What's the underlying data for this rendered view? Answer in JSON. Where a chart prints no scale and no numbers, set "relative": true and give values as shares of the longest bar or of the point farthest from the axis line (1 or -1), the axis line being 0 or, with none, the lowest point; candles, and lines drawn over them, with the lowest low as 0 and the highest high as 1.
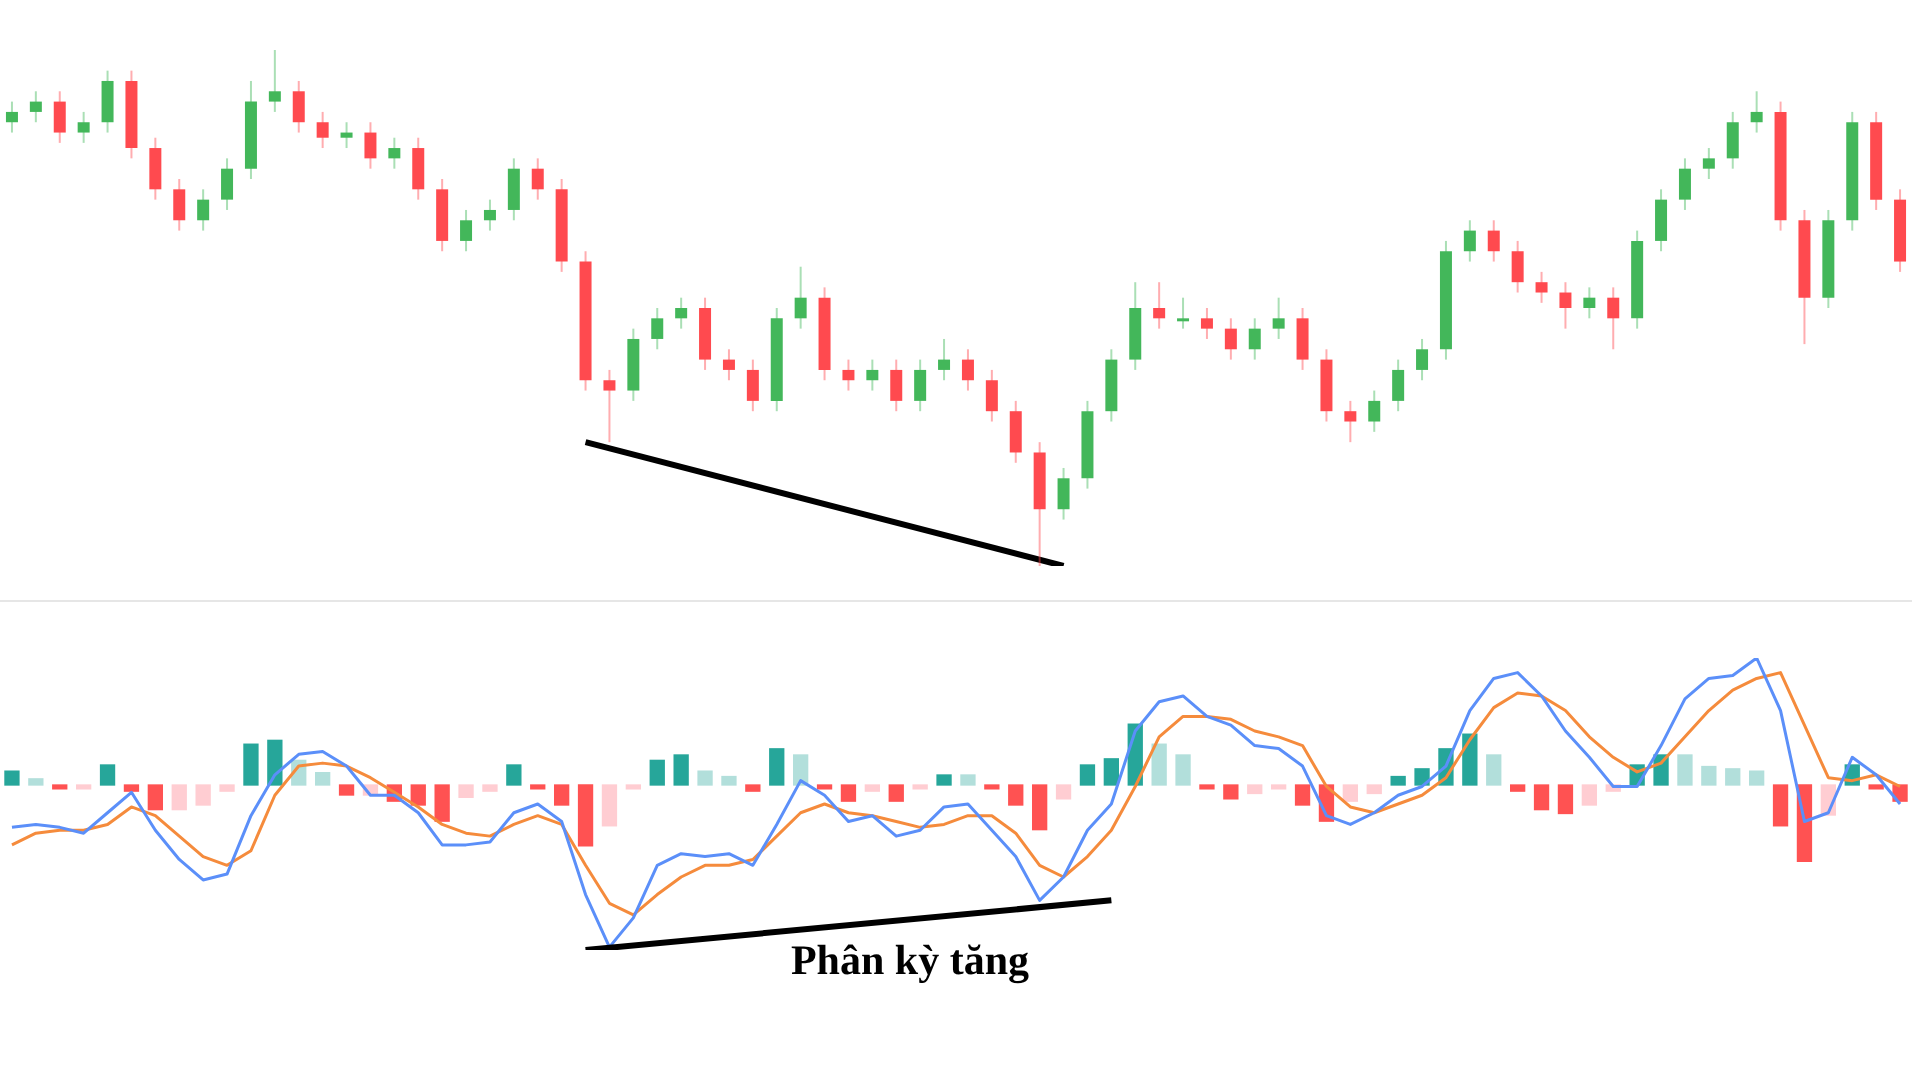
{
  "chart_data": [
    {
      "type": "candlestick",
      "relative": true,
      "tick_labels": false,
      "categories": [
        null,
        null,
        null,
        null,
        null,
        null,
        null,
        null,
        null,
        null,
        null,
        null,
        null,
        null,
        null,
        null,
        null,
        null,
        null,
        null,
        null,
        null,
        null,
        null,
        null,
        null,
        null,
        null,
        null,
        null,
        null,
        null,
        null,
        null,
        null,
        null,
        null,
        null,
        null,
        null,
        null,
        null,
        null,
        null,
        null,
        null,
        null,
        null,
        null,
        null,
        null,
        null,
        null,
        null,
        null,
        null,
        null,
        null,
        null,
        null,
        null,
        null,
        null,
        null,
        null,
        null,
        null,
        null,
        null,
        null,
        null,
        null,
        null,
        null,
        null,
        null,
        null,
        null,
        null,
        null
      ],
      "ohlc": [
        [
          0.86,
          0.9,
          0.84,
          0.88
        ],
        [
          0.88,
          0.92,
          0.86,
          0.9
        ],
        [
          0.9,
          0.92,
          0.82,
          0.84
        ],
        [
          0.84,
          0.88,
          0.82,
          0.86
        ],
        [
          0.86,
          0.96,
          0.84,
          0.94
        ],
        [
          0.94,
          0.96,
          0.79,
          0.81
        ],
        [
          0.81,
          0.83,
          0.71,
          0.73
        ],
        [
          0.73,
          0.75,
          0.65,
          0.67
        ],
        [
          0.67,
          0.73,
          0.65,
          0.71
        ],
        [
          0.71,
          0.79,
          0.69,
          0.77
        ],
        [
          0.77,
          0.94,
          0.75,
          0.9
        ],
        [
          0.9,
          1,
          0.88,
          0.92
        ],
        [
          0.92,
          0.94,
          0.84,
          0.86
        ],
        [
          0.86,
          0.88,
          0.81,
          0.83
        ],
        [
          0.83,
          0.86,
          0.81,
          0.84
        ],
        [
          0.84,
          0.86,
          0.77,
          0.79
        ],
        [
          0.79,
          0.83,
          0.77,
          0.81
        ],
        [
          0.81,
          0.83,
          0.71,
          0.73
        ],
        [
          0.73,
          0.75,
          0.61,
          0.63
        ],
        [
          0.63,
          0.69,
          0.61,
          0.67
        ],
        [
          0.67,
          0.71,
          0.65,
          0.69
        ],
        [
          0.69,
          0.79,
          0.67,
          0.77
        ],
        [
          0.77,
          0.79,
          0.71,
          0.73
        ],
        [
          0.73,
          0.75,
          0.57,
          0.59
        ],
        [
          0.59,
          0.61,
          0.34,
          0.36
        ],
        [
          0.36,
          0.38,
          0.24,
          0.34
        ],
        [
          0.34,
          0.46,
          0.32,
          0.44
        ],
        [
          0.44,
          0.5,
          0.42,
          0.48
        ],
        [
          0.48,
          0.52,
          0.46,
          0.5
        ],
        [
          0.5,
          0.52,
          0.38,
          0.4
        ],
        [
          0.4,
          0.42,
          0.36,
          0.38
        ],
        [
          0.38,
          0.4,
          0.3,
          0.32
        ],
        [
          0.32,
          0.5,
          0.3,
          0.48
        ],
        [
          0.48,
          0.58,
          0.46,
          0.52
        ],
        [
          0.52,
          0.54,
          0.36,
          0.38
        ],
        [
          0.38,
          0.4,
          0.34,
          0.36
        ],
        [
          0.36,
          0.4,
          0.34,
          0.38
        ],
        [
          0.38,
          0.4,
          0.3,
          0.32
        ],
        [
          0.32,
          0.4,
          0.3,
          0.38
        ],
        [
          0.38,
          0.44,
          0.36,
          0.4
        ],
        [
          0.4,
          0.42,
          0.34,
          0.36
        ],
        [
          0.36,
          0.38,
          0.28,
          0.3
        ],
        [
          0.3,
          0.32,
          0.2,
          0.22
        ],
        [
          0.22,
          0.24,
          0,
          0.11
        ],
        [
          0.11,
          0.19,
          0.09,
          0.17
        ],
        [
          0.17,
          0.32,
          0.15,
          0.3
        ],
        [
          0.3,
          0.42,
          0.28,
          0.4
        ],
        [
          0.4,
          0.55,
          0.38,
          0.5
        ],
        [
          0.5,
          0.55,
          0.46,
          0.48
        ],
        [
          0.48,
          0.52,
          0.46,
          0.48
        ],
        [
          0.48,
          0.5,
          0.44,
          0.46
        ],
        [
          0.46,
          0.48,
          0.4,
          0.42
        ],
        [
          0.42,
          0.48,
          0.4,
          0.46
        ],
        [
          0.46,
          0.52,
          0.44,
          0.48
        ],
        [
          0.48,
          0.5,
          0.38,
          0.4
        ],
        [
          0.4,
          0.42,
          0.28,
          0.3
        ],
        [
          0.3,
          0.32,
          0.24,
          0.28
        ],
        [
          0.28,
          0.34,
          0.26,
          0.32
        ],
        [
          0.32,
          0.4,
          0.3,
          0.38
        ],
        [
          0.38,
          0.44,
          0.36,
          0.42
        ],
        [
          0.42,
          0.63,
          0.4,
          0.61
        ],
        [
          0.61,
          0.67,
          0.59,
          0.65
        ],
        [
          0.65,
          0.67,
          0.59,
          0.61
        ],
        [
          0.61,
          0.63,
          0.53,
          0.55
        ],
        [
          0.55,
          0.57,
          0.51,
          0.53
        ],
        [
          0.53,
          0.55,
          0.46,
          0.5
        ],
        [
          0.5,
          0.54,
          0.48,
          0.52
        ],
        [
          0.52,
          0.54,
          0.42,
          0.48
        ],
        [
          0.48,
          0.65,
          0.46,
          0.63
        ],
        [
          0.63,
          0.73,
          0.61,
          0.71
        ],
        [
          0.71,
          0.79,
          0.69,
          0.77
        ],
        [
          0.77,
          0.81,
          0.75,
          0.79
        ],
        [
          0.79,
          0.88,
          0.77,
          0.86
        ],
        [
          0.86,
          0.92,
          0.84,
          0.88
        ],
        [
          0.88,
          0.9,
          0.65,
          0.67
        ],
        [
          0.67,
          0.69,
          0.43,
          0.52
        ],
        [
          0.52,
          0.69,
          0.5,
          0.67
        ],
        [
          0.67,
          0.88,
          0.65,
          0.86
        ],
        [
          0.86,
          0.88,
          0.69,
          0.71
        ],
        [
          0.71,
          0.73,
          0.57,
          0.59
        ]
      ],
      "colors": [
        "#43b75a",
        "#43b75a",
        "#ff4a4f",
        "#43b75a",
        "#43b75a",
        "#ff4a4f",
        "#ff4a4f",
        "#ff4a4f",
        "#43b75a",
        "#43b75a",
        "#43b75a",
        "#43b75a",
        "#ff4a4f",
        "#ff4a4f",
        "#43b75a",
        "#ff4a4f",
        "#43b75a",
        "#ff4a4f",
        "#ff4a4f",
        "#43b75a",
        "#43b75a",
        "#43b75a",
        "#ff4a4f",
        "#ff4a4f",
        "#ff4a4f",
        "#ff4a4f",
        "#43b75a",
        "#43b75a",
        "#43b75a",
        "#ff4a4f",
        "#ff4a4f",
        "#ff4a4f",
        "#43b75a",
        "#43b75a",
        "#ff4a4f",
        "#ff4a4f",
        "#43b75a",
        "#ff4a4f",
        "#43b75a",
        "#43b75a",
        "#ff4a4f",
        "#ff4a4f",
        "#ff4a4f",
        "#ff4a4f",
        "#43b75a",
        "#43b75a",
        "#43b75a",
        "#43b75a",
        "#ff4a4f",
        "#43b75a",
        "#ff4a4f",
        "#ff4a4f",
        "#43b75a",
        "#43b75a",
        "#ff4a4f",
        "#ff4a4f",
        "#ff4a4f",
        "#43b75a",
        "#43b75a",
        "#43b75a",
        "#43b75a",
        "#43b75a",
        "#ff4a4f",
        "#ff4a4f",
        "#ff4a4f",
        "#ff4a4f",
        "#43b75a",
        "#ff4a4f",
        "#43b75a",
        "#43b75a",
        "#43b75a",
        "#43b75a",
        "#43b75a",
        "#43b75a",
        "#ff4a4f",
        "#ff4a4f",
        "#43b75a",
        "#43b75a",
        "#ff4a4f",
        "#ff4a4f"
      ],
      "series": [
        {
          "type": "line",
          "color": "#000000",
          "values": [
            null,
            null,
            null,
            null,
            null,
            null,
            null,
            null,
            null,
            null,
            null,
            null,
            null,
            null,
            null,
            null,
            null,
            null,
            null,
            null,
            null,
            null,
            null,
            null,
            0.24,
            null,
            null,
            null,
            null,
            null,
            null,
            null,
            null,
            null,
            null,
            null,
            null,
            null,
            null,
            null,
            null,
            null,
            null,
            null,
            0,
            null,
            null,
            null,
            null,
            null,
            null,
            null,
            null,
            null,
            null,
            null,
            null,
            null,
            null,
            null,
            null,
            null,
            null,
            null,
            null,
            null,
            null,
            null,
            null,
            null,
            null,
            null,
            null,
            null,
            null,
            null,
            null,
            null,
            null,
            null
          ]
        }
      ]
    },
    {
      "type": "bar",
      "relative": true,
      "tick_labels": false,
      "categories": [
        null,
        null,
        null,
        null,
        null,
        null,
        null,
        null,
        null,
        null,
        null,
        null,
        null,
        null,
        null,
        null,
        null,
        null,
        null,
        null,
        null,
        null,
        null,
        null,
        null,
        null,
        null,
        null,
        null,
        null,
        null,
        null,
        null,
        null,
        null,
        null,
        null,
        null,
        null,
        null,
        null,
        null,
        null,
        null,
        null,
        null,
        null,
        null,
        null,
        null,
        null,
        null,
        null,
        null,
        null,
        null,
        null,
        null,
        null,
        null,
        null,
        null,
        null,
        null,
        null,
        null,
        null,
        null,
        null,
        null,
        null,
        null,
        null,
        null,
        null,
        null,
        null,
        null,
        null,
        null
      ],
      "series": [
        {
          "type": "bar",
          "values": [
            0.18,
            0.08,
            -0.05,
            -0.05,
            0.26,
            -0.08,
            -0.32,
            -0.32,
            -0.26,
            -0.08,
            0.53,
            0.58,
            0.32,
            0.16,
            -0.13,
            -0.13,
            -0.21,
            -0.26,
            -0.47,
            -0.16,
            -0.08,
            0.26,
            -0.05,
            -0.26,
            -0.79,
            -0.53,
            -0.05,
            0.32,
            0.39,
            0.18,
            0.11,
            -0.08,
            0.47,
            0.39,
            -0.05,
            -0.21,
            -0.08,
            -0.21,
            -0.05,
            0.13,
            0.13,
            -0.05,
            -0.26,
            -0.58,
            -0.18,
            0.26,
            0.34,
            0.79,
            0.53,
            0.39,
            -0.05,
            -0.18,
            -0.11,
            -0.05,
            -0.26,
            -0.47,
            -0.21,
            -0.11,
            0.11,
            0.21,
            0.47,
            0.66,
            0.39,
            -0.08,
            -0.32,
            -0.37,
            -0.26,
            -0.08,
            0.26,
            0.39,
            0.39,
            0.24,
            0.21,
            0.18,
            -0.53,
            -1,
            -0.39,
            0.26,
            -0.05,
            -0.21
          ],
          "colors": [
            "#26a69a",
            "#b2dfdb",
            "#ff5252",
            "#ffcdd2",
            "#26a69a",
            "#ff5252",
            "#ff5252",
            "#ffcdd2",
            "#ffcdd2",
            "#ffcdd2",
            "#26a69a",
            "#26a69a",
            "#b2dfdb",
            "#b2dfdb",
            "#ff5252",
            "#ffcdd2",
            "#ff5252",
            "#ff5252",
            "#ff5252",
            "#ffcdd2",
            "#ffcdd2",
            "#26a69a",
            "#ff5252",
            "#ff5252",
            "#ff5252",
            "#ffcdd2",
            "#ffcdd2",
            "#26a69a",
            "#26a69a",
            "#b2dfdb",
            "#b2dfdb",
            "#ff5252",
            "#26a69a",
            "#b2dfdb",
            "#ff5252",
            "#ff5252",
            "#ffcdd2",
            "#ff5252",
            "#ffcdd2",
            "#26a69a",
            "#b2dfdb",
            "#ff5252",
            "#ff5252",
            "#ff5252",
            "#ffcdd2",
            "#26a69a",
            "#26a69a",
            "#26a69a",
            "#b2dfdb",
            "#b2dfdb",
            "#ff5252",
            "#ff5252",
            "#ffcdd2",
            "#ffcdd2",
            "#ff5252",
            "#ff5252",
            "#ffcdd2",
            "#ffcdd2",
            "#26a69a",
            "#26a69a",
            "#26a69a",
            "#26a69a",
            "#b2dfdb",
            "#ff5252",
            "#ff5252",
            "#ff5252",
            "#ffcdd2",
            "#ffcdd2",
            "#26a69a",
            "#26a69a",
            "#b2dfdb",
            "#b2dfdb",
            "#b2dfdb",
            "#b2dfdb",
            "#ff5252",
            "#ff5252",
            "#ffcdd2",
            "#26a69a",
            "#ff5252",
            "#ff5252"
          ]
        }
      ]
    },
    {
      "type": "line",
      "relative": true,
      "tick_labels": false,
      "annotations": [
        "Phân kỳ tăng"
      ],
      "categories": [
        null,
        null,
        null,
        null,
        null,
        null,
        null,
        null,
        null,
        null,
        null,
        null,
        null,
        null,
        null,
        null,
        null,
        null,
        null,
        null,
        null,
        null,
        null,
        null,
        null,
        null,
        null,
        null,
        null,
        null,
        null,
        null,
        null,
        null,
        null,
        null,
        null,
        null,
        null,
        null,
        null,
        null,
        null,
        null,
        null,
        null,
        null,
        null,
        null,
        null,
        null,
        null,
        null,
        null,
        null,
        null,
        null,
        null,
        null,
        null,
        null,
        null,
        null,
        null,
        null,
        null,
        null,
        null,
        null,
        null,
        null,
        null,
        null,
        null,
        null,
        null,
        null,
        null,
        null,
        null
      ],
      "series": [
        {
          "type": "line",
          "color": "#5b8ff9",
          "values": [
            0.42,
            0.43,
            0.42,
            0.4,
            0.47,
            0.54,
            0.41,
            0.31,
            0.24,
            0.26,
            0.46,
            0.6,
            0.67,
            0.68,
            0.63,
            0.53,
            0.53,
            0.47,
            0.36,
            0.36,
            0.37,
            0.47,
            0.5,
            0.44,
            0.19,
            0.01,
            0.11,
            0.29,
            0.33,
            0.32,
            0.33,
            0.29,
            0.43,
            0.58,
            0.53,
            0.44,
            0.46,
            0.39,
            0.41,
            0.49,
            0.5,
            0.41,
            0.32,
            0.17,
            0.25,
            0.41,
            0.5,
            0.75,
            0.85,
            0.87,
            0.8,
            0.77,
            0.7,
            0.69,
            0.63,
            0.46,
            0.43,
            0.47,
            0.53,
            0.56,
            0.63,
            0.82,
            0.93,
            0.95,
            0.87,
            0.75,
            0.66,
            0.56,
            0.56,
            0.7,
            0.86,
            0.93,
            0.94,
            1,
            0.82,
            0.44,
            0.47,
            0.66,
            0.6,
            0.5
          ]
        },
        {
          "type": "line",
          "color": "#f58b3c",
          "values": [
            0.36,
            0.4,
            0.41,
            0.41,
            0.43,
            0.49,
            0.46,
            0.39,
            0.32,
            0.29,
            0.34,
            0.53,
            0.63,
            0.64,
            0.63,
            0.59,
            0.54,
            0.49,
            0.43,
            0.4,
            0.39,
            0.43,
            0.46,
            0.43,
            0.29,
            0.16,
            0.12,
            0.19,
            0.25,
            0.29,
            0.29,
            0.31,
            0.39,
            0.47,
            0.5,
            0.47,
            0.46,
            0.44,
            0.42,
            0.43,
            0.46,
            0.46,
            0.4,
            0.29,
            0.25,
            0.32,
            0.41,
            0.56,
            0.73,
            0.8,
            0.8,
            0.79,
            0.75,
            0.73,
            0.7,
            0.56,
            0.49,
            0.47,
            0.5,
            0.53,
            0.59,
            0.72,
            0.83,
            0.88,
            0.87,
            0.82,
            0.73,
            0.66,
            0.61,
            0.64,
            0.73,
            0.82,
            0.89,
            0.93,
            0.95,
            0.77,
            0.59,
            0.58,
            0.6,
            0.56
          ]
        },
        {
          "type": "line",
          "color": "#000000",
          "values": [
            null,
            null,
            null,
            null,
            null,
            null,
            null,
            null,
            null,
            null,
            null,
            null,
            null,
            null,
            null,
            null,
            null,
            null,
            null,
            null,
            null,
            null,
            null,
            null,
            0,
            null,
            null,
            null,
            null,
            null,
            null,
            null,
            null,
            null,
            null,
            null,
            null,
            null,
            null,
            null,
            null,
            null,
            null,
            null,
            null,
            null,
            0.17,
            null,
            null,
            null,
            null,
            null,
            null,
            null,
            null,
            null,
            null,
            null,
            null,
            null,
            null,
            null,
            null,
            null,
            null,
            null,
            null,
            null,
            null,
            null,
            null,
            null,
            null,
            null,
            null,
            null,
            null,
            null,
            null,
            null
          ]
        }
      ]
    }
  ]
}
